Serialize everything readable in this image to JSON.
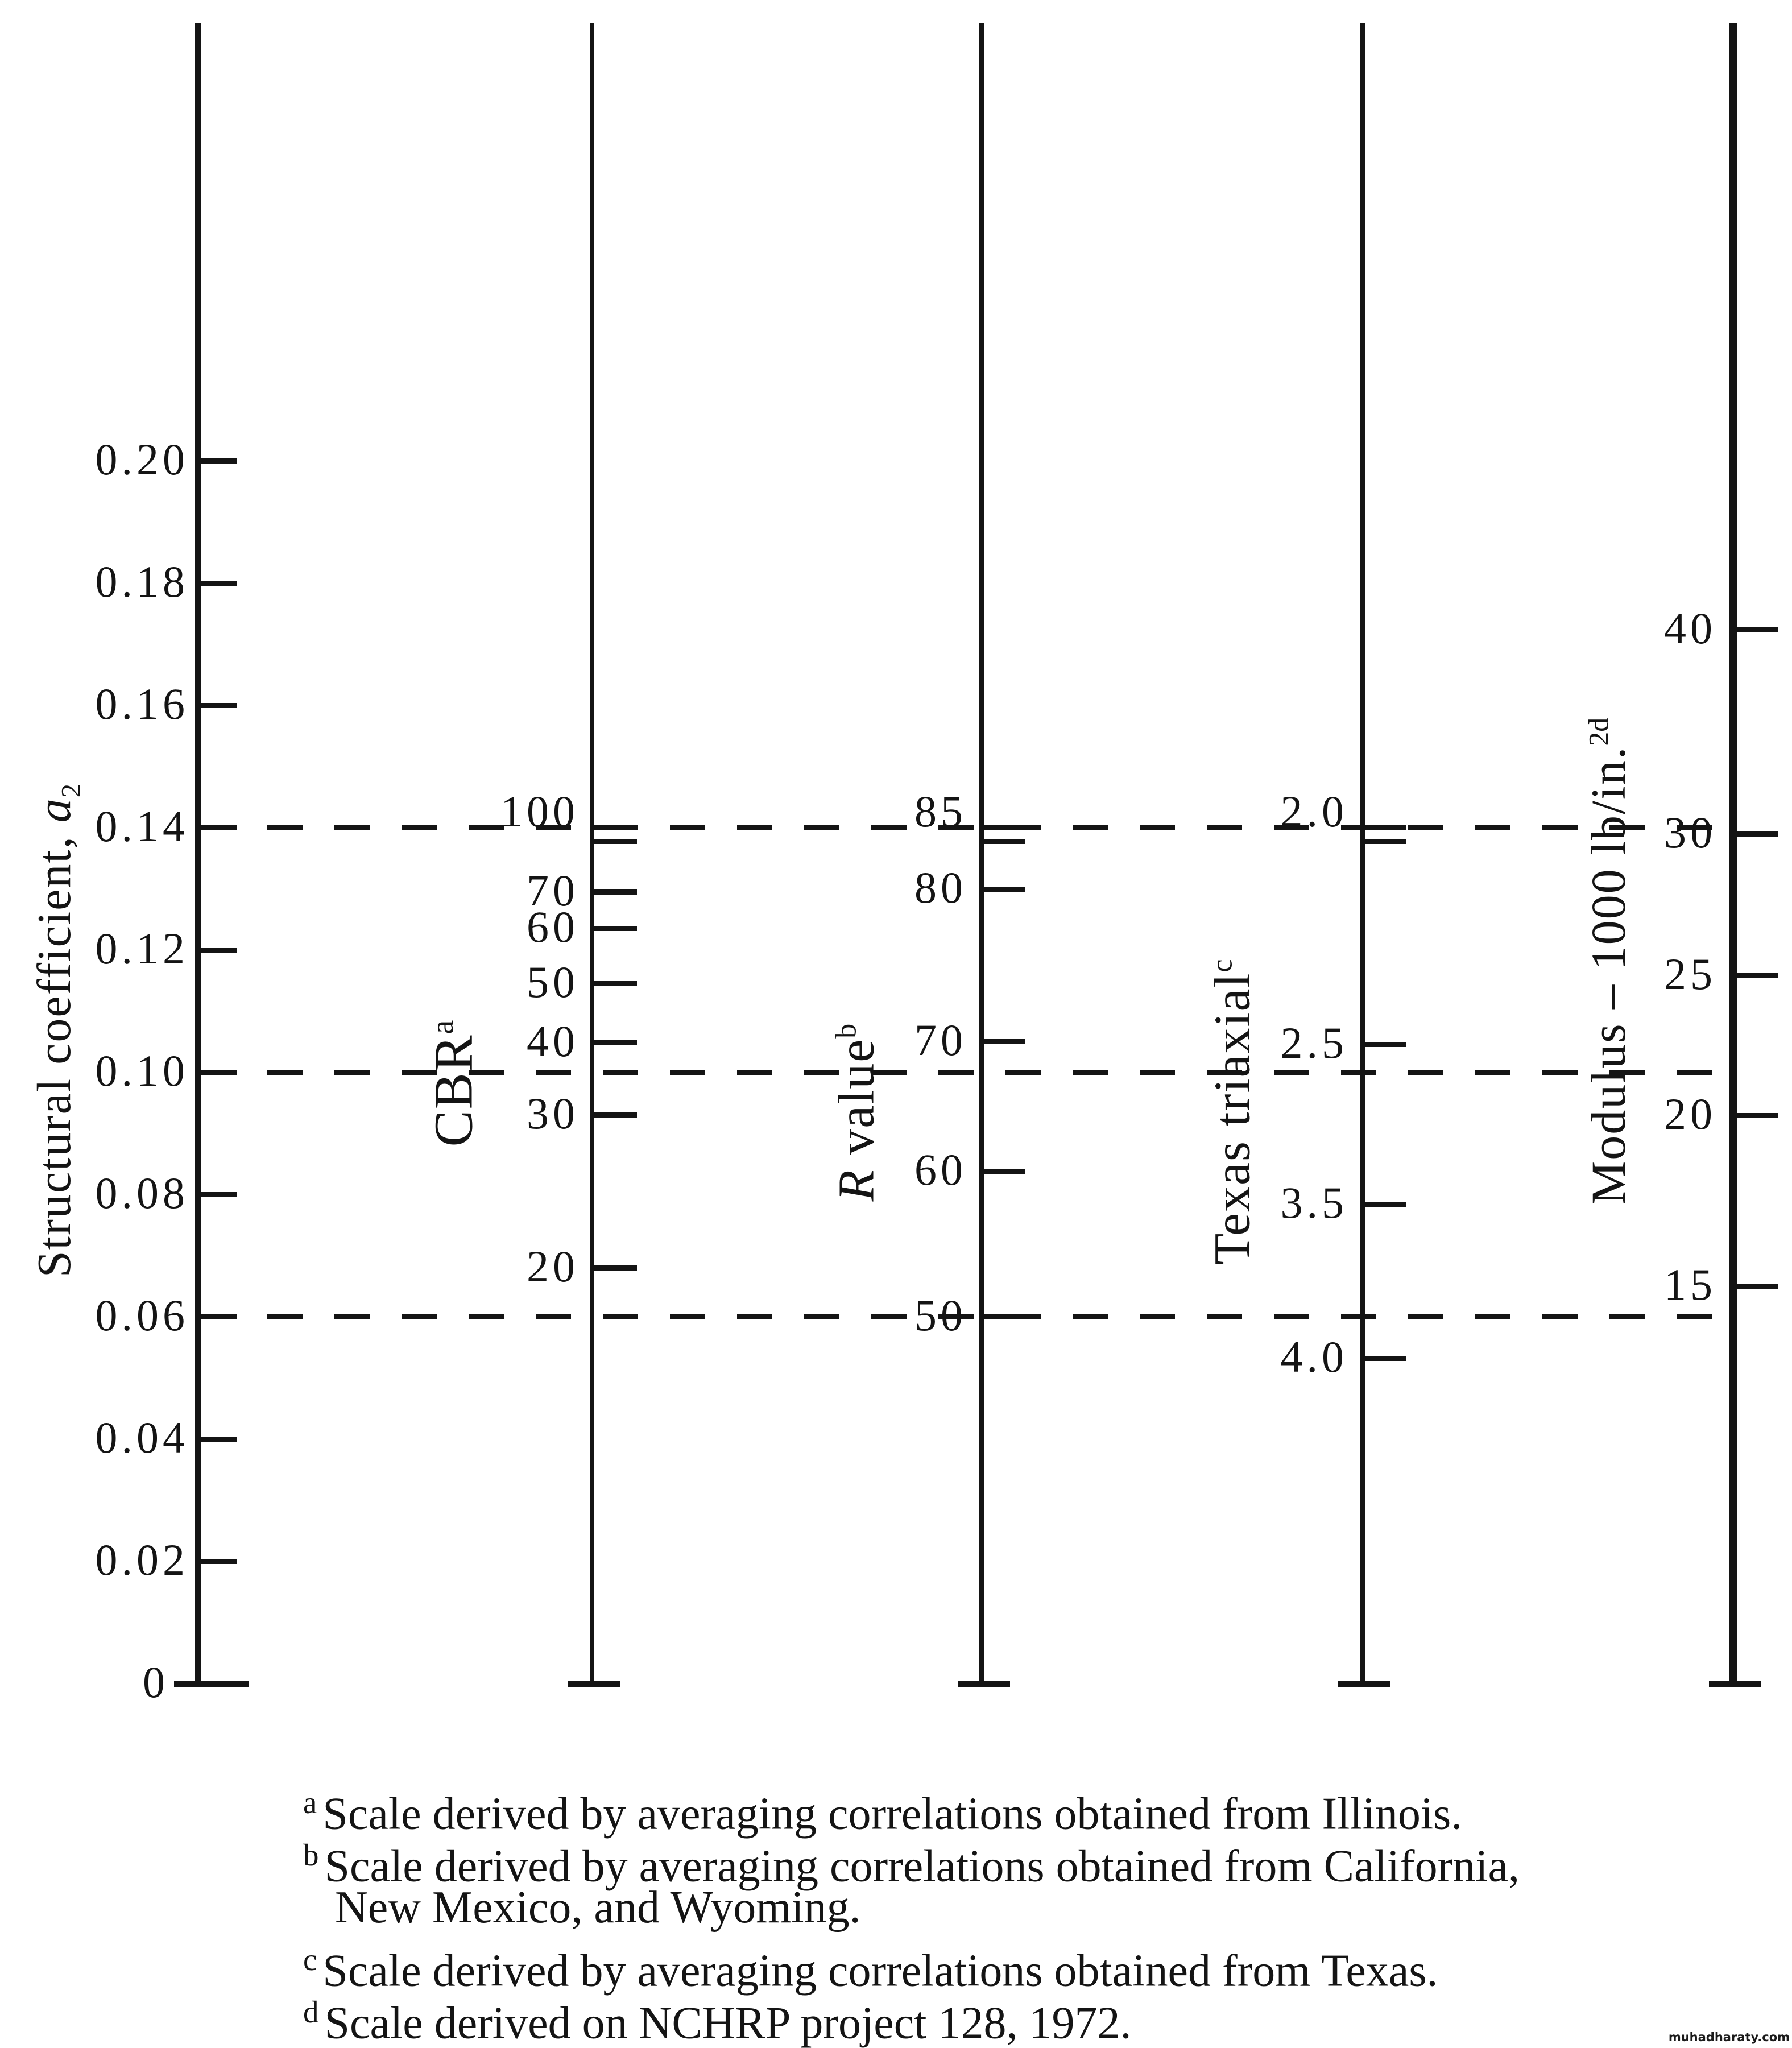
{
  "chart_data": {
    "type": "line",
    "subtype": "nomograph correlation alignment chart for granular base structural coefficient",
    "y_axis": {
      "title": "Structural coefficient, a2",
      "title_parts": [
        {
          "t": "text",
          "v": "Structural coefficient, "
        },
        {
          "t": "i",
          "v": "a"
        },
        {
          "t": "sub",
          "v": "2"
        }
      ],
      "range": [
        0,
        0.2
      ],
      "ticks": [
        {
          "label": "0.20",
          "value": 0.2
        },
        {
          "label": "0.18",
          "value": 0.18
        },
        {
          "label": "0.16",
          "value": 0.16
        },
        {
          "label": "0.14",
          "value": 0.14
        },
        {
          "label": "0.12",
          "value": 0.12
        },
        {
          "label": "0.10",
          "value": 0.1
        },
        {
          "label": "0.08",
          "value": 0.08
        },
        {
          "label": "0.06",
          "value": 0.06
        },
        {
          "label": "0.04",
          "value": 0.04
        },
        {
          "label": "0.02",
          "value": 0.02
        },
        {
          "label": "0",
          "value": 0
        }
      ]
    },
    "dashed_reference_lines": [
      0.14,
      0.1,
      0.06
    ],
    "scales": [
      {
        "id": "cbr",
        "title": "CBR",
        "footnote_marker": "a",
        "title_parts": [
          {
            "t": "text",
            "v": "CBR"
          },
          {
            "t": "sup",
            "v": "a"
          }
        ],
        "ticks": [
          {
            "label": "100",
            "a2": 0.14,
            "double": true
          },
          {
            "label": "70",
            "a2": 0.1295
          },
          {
            "label": "60",
            "a2": 0.1235
          },
          {
            "label": "50",
            "a2": 0.1145
          },
          {
            "label": "40",
            "a2": 0.1048
          },
          {
            "label": "30",
            "a2": 0.093
          },
          {
            "label": "20",
            "a2": 0.068
          }
        ]
      },
      {
        "id": "r-value",
        "title": "R value",
        "footnote_marker": "b",
        "title_parts": [
          {
            "t": "i",
            "v": "R"
          },
          {
            "t": "text",
            "v": " value"
          },
          {
            "t": "sup",
            "v": "b"
          }
        ],
        "ticks": [
          {
            "label": "85",
            "a2": 0.14,
            "double": true
          },
          {
            "label": "80",
            "a2": 0.13
          },
          {
            "label": "70",
            "a2": 0.105
          },
          {
            "label": "60",
            "a2": 0.0838
          },
          {
            "label": "50",
            "a2": 0.06
          }
        ]
      },
      {
        "id": "texas-triaxial",
        "title": "Texas triaxial",
        "footnote_marker": "c",
        "title_parts": [
          {
            "t": "text",
            "v": "Texas triaxial"
          },
          {
            "t": "sup",
            "v": "c"
          }
        ],
        "ticks": [
          {
            "label": "2.0",
            "a2": 0.14,
            "double": true
          },
          {
            "label": "2.5",
            "a2": 0.1046
          },
          {
            "label": "3.5",
            "a2": 0.0784
          },
          {
            "label": "4.0",
            "a2": 0.0532
          }
        ]
      },
      {
        "id": "modulus",
        "title": "Modulus – 1000 lb/in.2",
        "footnote_marker": "d",
        "title_parts": [
          {
            "t": "text",
            "v": "Modulus – 1000 lb/in."
          },
          {
            "t": "sup",
            "v": "2"
          },
          {
            "t": "sup",
            "v": "d"
          }
        ],
        "ticks": [
          {
            "label": "40",
            "a2": 0.1724
          },
          {
            "label": "30",
            "a2": 0.139
          },
          {
            "label": "25",
            "a2": 0.1158
          },
          {
            "label": "20",
            "a2": 0.0929
          },
          {
            "label": "15",
            "a2": 0.065
          }
        ]
      }
    ],
    "footnotes": [
      {
        "marker": "a",
        "lines": [
          "Scale derived by averaging correlations obtained from Illinois."
        ]
      },
      {
        "marker": "b",
        "lines": [
          "Scale derived by averaging correlations obtained from California,",
          "New Mexico, and Wyoming."
        ]
      },
      {
        "marker": "c",
        "lines": [
          "Scale derived by averaging correlations obtained from Texas."
        ]
      },
      {
        "marker": "d",
        "lines": [
          "Scale derived on NCHRP project 128, 1972."
        ]
      }
    ]
  },
  "watermark": "muhadharaty.com"
}
